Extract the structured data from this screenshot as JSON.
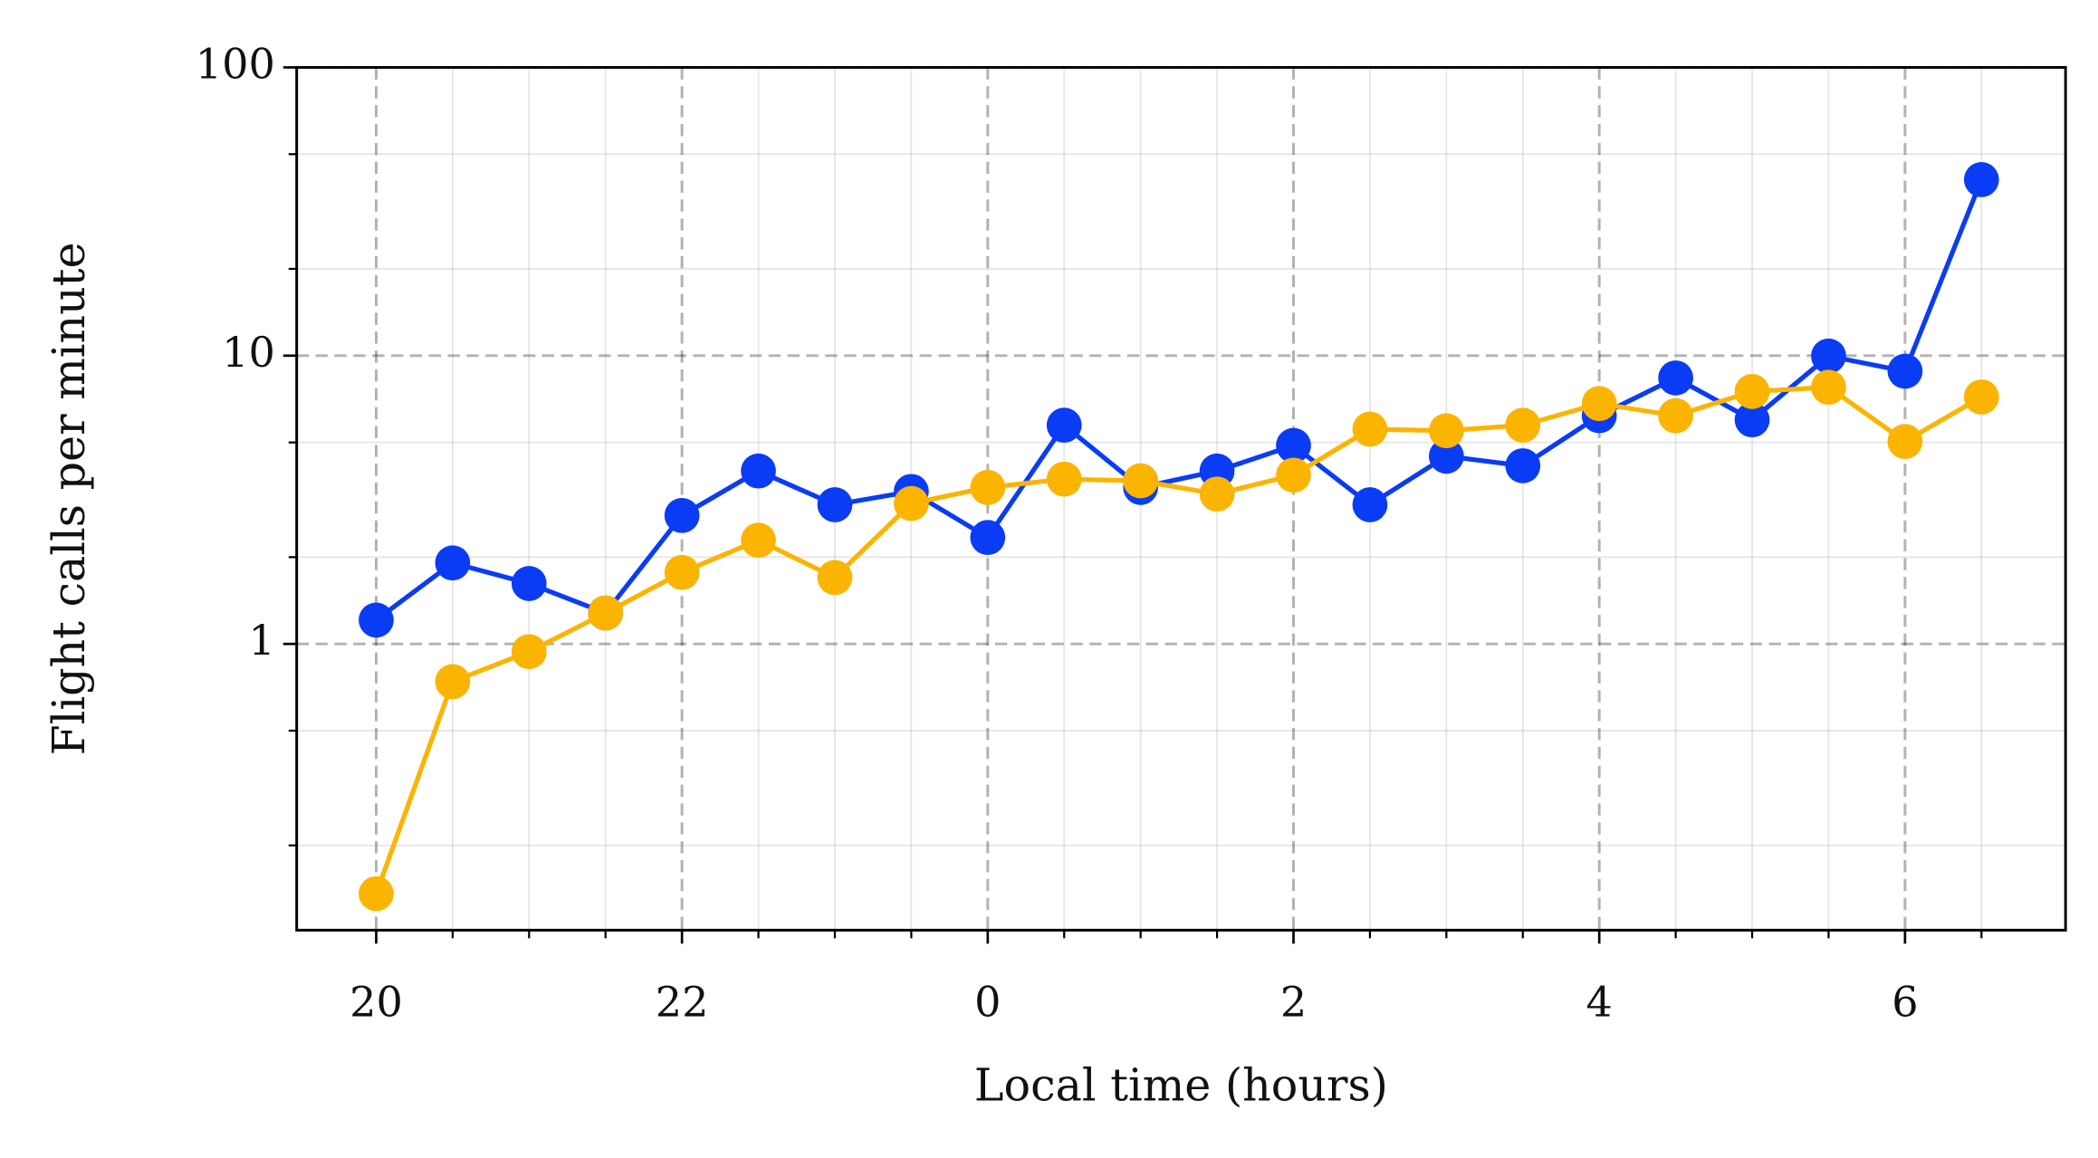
{
  "chart_data": {
    "type": "line",
    "x_label": "Local time (hours)",
    "y_label": "Flight calls per minute",
    "x": [
      20,
      20.5,
      21,
      21.5,
      22,
      22.5,
      23,
      23.5,
      24,
      24.5,
      25,
      25.5,
      26,
      26.5,
      27,
      27.5,
      28,
      28.5,
      29,
      29.5,
      30,
      30.5
    ],
    "series": [
      {
        "color": "#0a3cf5",
        "values": [
          1.21,
          1.91,
          1.62,
          1.28,
          2.79,
          3.98,
          3.04,
          3.38,
          2.34,
          5.74,
          3.49,
          3.98,
          4.88,
          3.04,
          4.48,
          4.15,
          6.19,
          8.37,
          5.99,
          9.97,
          8.83,
          40.8
        ]
      },
      {
        "color": "#fbb400",
        "values": [
          0.136,
          0.74,
          0.94,
          1.28,
          1.77,
          2.29,
          1.7,
          3.07,
          3.49,
          3.73,
          3.68,
          3.31,
          3.85,
          5.56,
          5.49,
          5.74,
          6.82,
          6.19,
          7.51,
          7.77,
          5.04,
          7.19
        ]
      }
    ],
    "xlim": [
      19.48,
      31.05
    ],
    "xticks": [
      20,
      22,
      {
        "value": 24,
        "label": "0"
      },
      {
        "value": 26,
        "label": "2"
      },
      {
        "value": 28,
        "label": "4"
      },
      {
        "value": 30,
        "label": "6"
      }
    ],
    "xminorticks": [
      20.5,
      21,
      21.5,
      22.5,
      23,
      23.5,
      24.5,
      25,
      25.5,
      26.5,
      27,
      27.5,
      28.5,
      29,
      29.5,
      30.5
    ],
    "ylim": [
      0.1016,
      100
    ],
    "yticks": [
      1,
      10,
      100
    ],
    "yminorticks": [
      0.2,
      0.5,
      2,
      5,
      20,
      50
    ],
    "ylog": true,
    "grid": true
  }
}
